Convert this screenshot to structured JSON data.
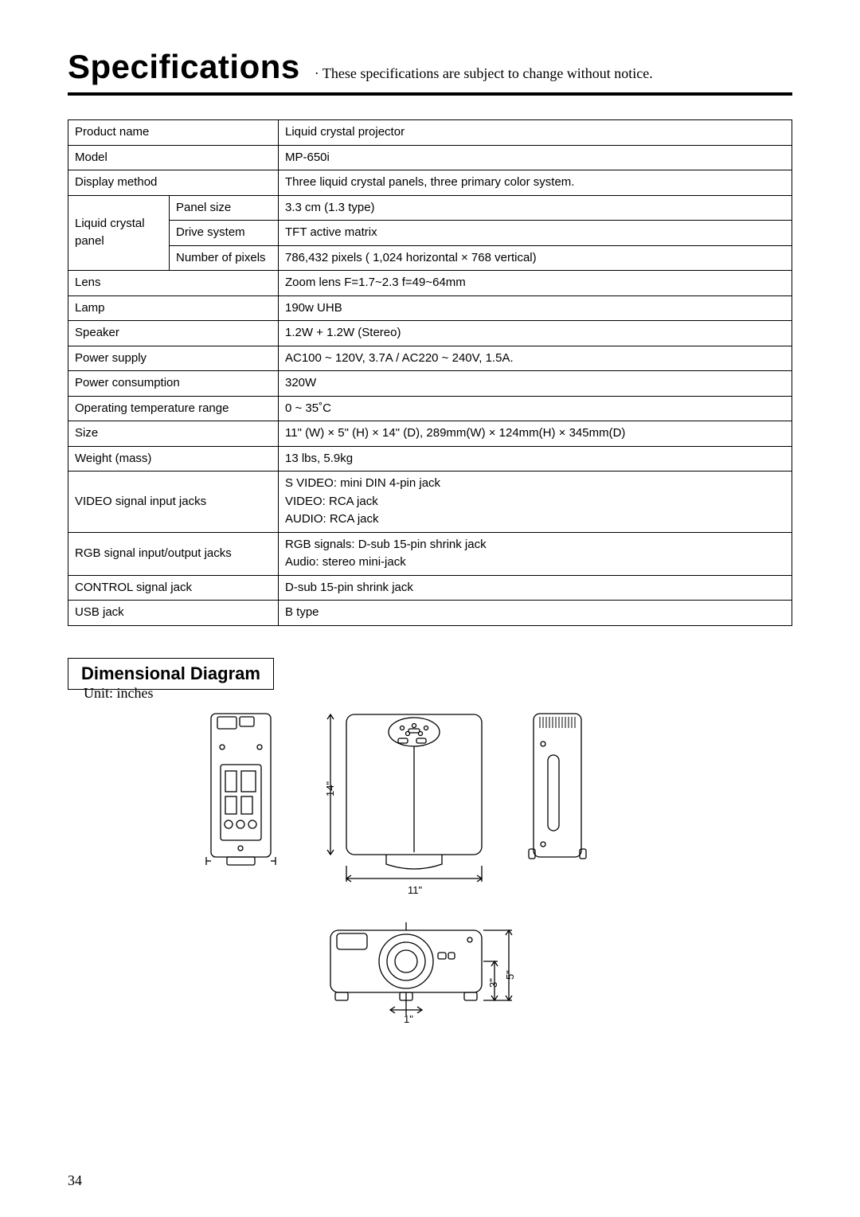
{
  "header": {
    "title": "Specifications",
    "subtitle": "· These specifications are subject to change without notice."
  },
  "spec_table": {
    "rows": [
      {
        "k": "Product name",
        "v": "Liquid crystal projector"
      },
      {
        "k": "Model",
        "v": "MP-650i"
      },
      {
        "k": "Display method",
        "v": "Three liquid crystal panels, three primary color system."
      }
    ],
    "lcd": {
      "group": "Liquid crystal panel",
      "rows": [
        {
          "k": "Panel size",
          "v": "3.3 cm (1.3 type)"
        },
        {
          "k": "Drive system",
          "v": "TFT active matrix"
        },
        {
          "k": "Number of pixels",
          "v": "786,432 pixels ( 1,024 horizontal × 768 vertical)"
        }
      ]
    },
    "rest": [
      {
        "k": "Lens",
        "v": "Zoom lens F=1.7~2.3   f=49~64mm"
      },
      {
        "k": "Lamp",
        "v": "190w UHB"
      },
      {
        "k": "Speaker",
        "v": "1.2W + 1.2W (Stereo)"
      },
      {
        "k": "Power supply",
        "v": "AC100 ~ 120V, 3.7A / AC220 ~ 240V, 1.5A."
      },
      {
        "k": "Power consumption",
        "v": "320W"
      },
      {
        "k": "Operating temperature range",
        "v": "0 ~ 35˚C"
      },
      {
        "k": "Size",
        "v": "11\" (W) × 5\" (H) × 14\" (D), 289mm(W) × 124mm(H) × 345mm(D)"
      },
      {
        "k": "Weight (mass)",
        "v": "13 lbs, 5.9kg"
      },
      {
        "k": "VIDEO signal input jacks",
        "v": "S VIDEO: mini DIN 4-pin jack\nVIDEO: RCA jack\nAUDIO: RCA jack"
      },
      {
        "k": "RGB signal input/output jacks",
        "v": "RGB signals: D-sub 15-pin shrink jack\nAudio: stereo mini-jack"
      },
      {
        "k": "CONTROL signal jack",
        "v": "D-sub 15-pin shrink jack"
      },
      {
        "k": "USB jack",
        "v": "B type"
      }
    ]
  },
  "diagram": {
    "section_title": "Dimensional Diagram",
    "unit_label": "Unit: inches",
    "dims": {
      "depth": "14\"",
      "width": "11\"",
      "front_height": "5\"",
      "lens_height": "3\"",
      "offset": "1\""
    },
    "style": {
      "stroke": "#000000",
      "stroke_width": 1.3,
      "fill": "#ffffff"
    }
  },
  "page_number": "34"
}
